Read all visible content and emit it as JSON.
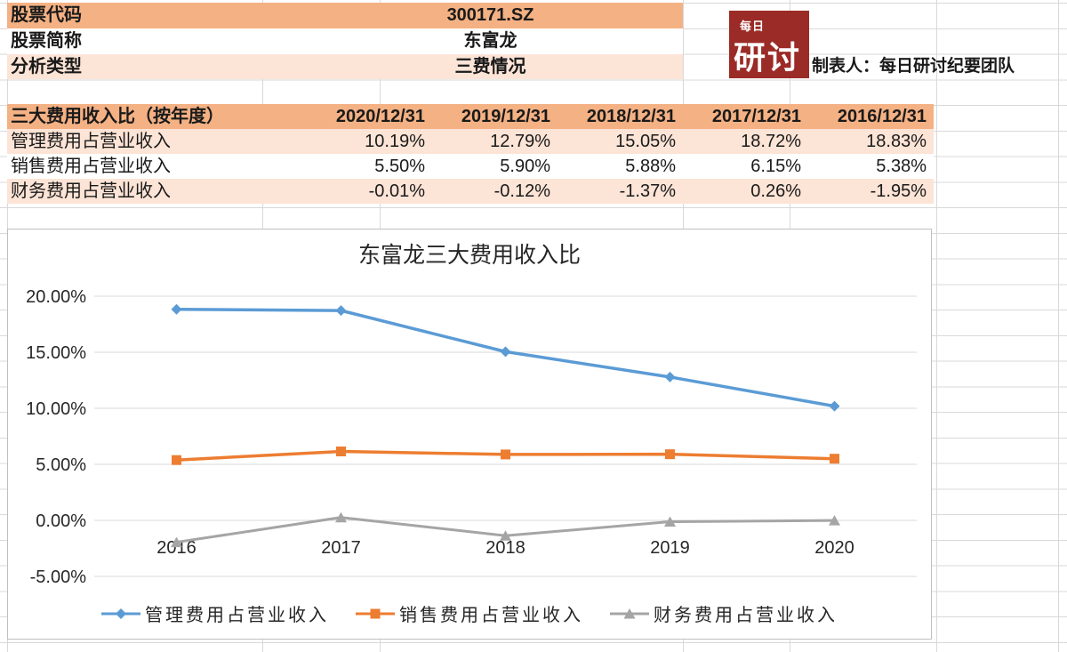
{
  "sheet": {
    "info_rows": [
      {
        "label": "股票代码",
        "value": "300171.SZ"
      },
      {
        "label": "股票简称",
        "value": "东富龙"
      },
      {
        "label": "分析类型",
        "value": "三费情况"
      }
    ],
    "logo": {
      "small_text": "每日",
      "large_text": "研讨"
    },
    "author_line": "制表人：每日研讨纪要团队"
  },
  "fees_table": {
    "title": "三大费用收入比（按年度）",
    "date_columns": [
      "2020/12/31",
      "2019/12/31",
      "2018/12/31",
      "2017/12/31",
      "2016/12/31"
    ],
    "rows": [
      {
        "label": "管理费用占营业收入",
        "values": [
          "10.19%",
          "12.79%",
          "15.05%",
          "18.72%",
          "18.83%"
        ]
      },
      {
        "label": "销售费用占营业收入",
        "values": [
          "5.50%",
          "5.90%",
          "5.88%",
          "6.15%",
          "5.38%"
        ]
      },
      {
        "label": "财务费用占营业收入",
        "values": [
          "-0.01%",
          "-0.12%",
          "-1.37%",
          "0.26%",
          "-1.95%"
        ]
      }
    ]
  },
  "chart_data": {
    "type": "line",
    "title": "东富龙三大费用收入比",
    "categories": [
      "2016",
      "2017",
      "2018",
      "2019",
      "2020"
    ],
    "series": [
      {
        "name": "管理费用占营业收入",
        "marker": "diamond",
        "color": "#5B9BD5",
        "values": [
          18.83,
          18.72,
          15.05,
          12.79,
          10.19
        ]
      },
      {
        "name": "销售费用占营业收入",
        "marker": "square",
        "color": "#ED7D31",
        "values": [
          5.38,
          6.15,
          5.88,
          5.9,
          5.5
        ]
      },
      {
        "name": "财务费用占营业收入",
        "marker": "triangle",
        "color": "#A5A5A5",
        "values": [
          -1.95,
          0.26,
          -1.37,
          -0.12,
          -0.01
        ]
      }
    ],
    "ylim": [
      -5,
      20
    ],
    "ytick_step": 5,
    "ytick_labels": [
      "20.00%",
      "15.00%",
      "10.00%",
      "5.00%",
      "0.00%",
      "-5.00%"
    ],
    "grid": true,
    "legend_position": "bottom"
  },
  "colors": {
    "header_fill": "#F4B183",
    "band_fill": "#FCE4D6",
    "logo_red": "#9B2B26",
    "grid_line": "#D9D9D9",
    "chart_border": "#BFBFBF",
    "series_blue": "#5B9BD5",
    "series_orange": "#ED7D31",
    "series_gray": "#A5A5A5"
  }
}
